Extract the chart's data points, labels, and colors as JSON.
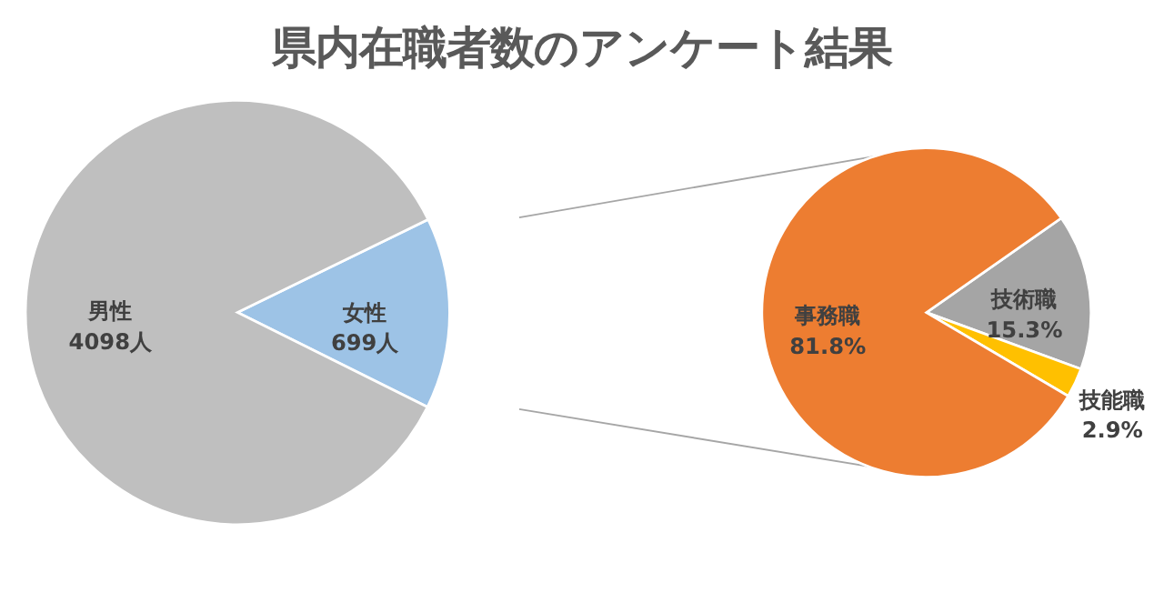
{
  "chart_data": [
    {
      "type": "pie",
      "title": "県内在職者数のアンケート結果",
      "categories": [
        "女性",
        "男性"
      ],
      "values": [
        699,
        4098
      ],
      "colors": [
        "#9dc3e6",
        "#bfbfbf"
      ],
      "value_labels": [
        "699人",
        "4098人"
      ]
    },
    {
      "type": "pie",
      "categories": [
        "技術職",
        "技能職",
        "事務職"
      ],
      "values": [
        15.3,
        2.9,
        81.8
      ],
      "colors": [
        "#a5a5a5",
        "#ffc000",
        "#ed7d31"
      ],
      "value_labels": [
        "15.3%",
        "2.9%",
        "81.8%"
      ]
    }
  ]
}
